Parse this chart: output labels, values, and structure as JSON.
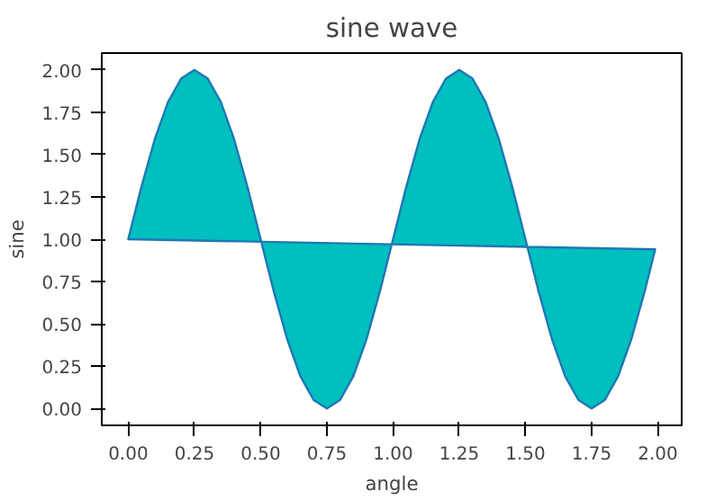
{
  "chart_data": {
    "type": "area",
    "title": "sine wave",
    "xlabel": "angle",
    "ylabel": "sine",
    "series": [
      {
        "color": "#00bfbf",
        "x": [
          0,
          0.05,
          0.1,
          0.15,
          0.2,
          0.25,
          0.3,
          0.35,
          0.4,
          0.45,
          0.5,
          0.55,
          0.6,
          0.65,
          0.7,
          0.75,
          0.8,
          0.85,
          0.9,
          0.95,
          1,
          1.05,
          1.1,
          1.15,
          1.2,
          1.25,
          1.3,
          1.35,
          1.4,
          1.45,
          1.5,
          1.55,
          1.6,
          1.65,
          1.7,
          1.75,
          1.8,
          1.85,
          1.9,
          1.95,
          1.99
        ],
        "values": [
          1,
          1.31,
          1.59,
          1.81,
          1.95,
          2,
          1.95,
          1.81,
          1.59,
          1.31,
          1,
          0.69,
          0.41,
          0.19,
          0.05,
          0,
          0.05,
          0.19,
          0.41,
          0.69,
          1,
          1.31,
          1.59,
          1.81,
          1.95,
          2,
          1.95,
          1.81,
          1.59,
          1.31,
          1,
          0.69,
          0.41,
          0.19,
          0.05,
          0,
          0.05,
          0.19,
          0.41,
          0.69,
          0.94
        ]
      }
    ],
    "xlim": [
      -0.1,
      2.09
    ],
    "ylim": [
      -0.1,
      2.1
    ],
    "xticks": [
      {
        "value": 0,
        "label": "0.00"
      },
      {
        "value": 0.25,
        "label": "0.25"
      },
      {
        "value": 0.5,
        "label": "0.50"
      },
      {
        "value": 0.75,
        "label": "0.75"
      },
      {
        "value": 1,
        "label": "1.00"
      },
      {
        "value": 1.25,
        "label": "1.25"
      },
      {
        "value": 1.5,
        "label": "1.50"
      },
      {
        "value": 1.75,
        "label": "1.75"
      },
      {
        "value": 2,
        "label": "2.00"
      }
    ],
    "yticks": [
      {
        "value": 0,
        "label": "0.00"
      },
      {
        "value": 0.25,
        "label": "0.25"
      },
      {
        "value": 0.5,
        "label": "0.50"
      },
      {
        "value": 0.75,
        "label": "0.75"
      },
      {
        "value": 1,
        "label": "1.00"
      },
      {
        "value": 1.25,
        "label": "1.25"
      },
      {
        "value": 1.5,
        "label": "1.50"
      },
      {
        "value": 1.75,
        "label": "1.75"
      },
      {
        "value": 2,
        "label": "2.00"
      }
    ]
  }
}
